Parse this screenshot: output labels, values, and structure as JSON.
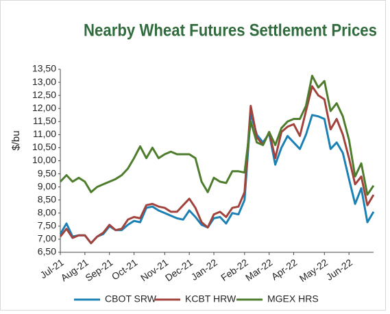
{
  "chart_data": {
    "type": "line",
    "title": "Nearby Wheat Futures Settlement Prices",
    "y_label": "$/bu",
    "categories": [
      "Jul-21",
      null,
      null,
      null,
      "Aug-21",
      null,
      null,
      null,
      "Sep-21",
      null,
      null,
      null,
      "Oct-21",
      null,
      null,
      null,
      null,
      "Nov-21",
      null,
      null,
      null,
      "Dec-21",
      null,
      null,
      null,
      "Jan-22",
      null,
      null,
      null,
      null,
      "Feb-22",
      null,
      null,
      null,
      "Mar-22",
      null,
      null,
      null,
      "Apr-22",
      null,
      null,
      null,
      null,
      "May-22",
      null,
      null,
      null,
      "Jun-22",
      null,
      null,
      null,
      null
    ],
    "series": [
      {
        "name": "CBOT SRW",
        "color": "#1b80b3",
        "values": [
          7.2,
          7.6,
          7.1,
          7.15,
          7.15,
          6.85,
          7.1,
          7.2,
          7.5,
          7.35,
          7.35,
          7.55,
          7.7,
          7.65,
          8.2,
          8.25,
          8.1,
          8.0,
          7.9,
          7.8,
          7.75,
          8.1,
          7.85,
          7.55,
          7.45,
          7.8,
          7.85,
          7.6,
          8.0,
          7.95,
          8.5,
          11.8,
          11.0,
          10.7,
          11.05,
          9.85,
          10.5,
          10.95,
          10.7,
          10.45,
          11.0,
          11.75,
          11.7,
          11.6,
          10.45,
          10.7,
          10.3,
          9.3,
          8.35,
          8.95,
          7.65,
          8.05
        ]
      },
      {
        "name": "KCBT HRW",
        "color": "#a2423c",
        "values": [
          7.1,
          7.4,
          7.05,
          7.15,
          7.15,
          6.85,
          7.1,
          7.25,
          7.55,
          7.35,
          7.4,
          7.75,
          7.85,
          7.8,
          8.3,
          8.35,
          8.25,
          8.2,
          8.05,
          8.05,
          8.3,
          8.55,
          8.2,
          7.65,
          7.45,
          7.95,
          8.05,
          7.85,
          8.2,
          8.25,
          8.8,
          12.1,
          10.9,
          10.6,
          11.1,
          10.1,
          11.1,
          11.3,
          11.4,
          10.95,
          11.9,
          12.85,
          12.5,
          12.35,
          11.2,
          11.6,
          11.0,
          10.1,
          9.1,
          9.4,
          8.3,
          8.7
        ]
      },
      {
        "name": "MGEX HRS",
        "color": "#4d7d2c",
        "values": [
          9.2,
          9.45,
          9.2,
          9.35,
          9.2,
          8.8,
          9.0,
          9.1,
          9.2,
          9.3,
          9.45,
          9.7,
          10.1,
          10.55,
          10.1,
          10.5,
          10.1,
          10.25,
          10.35,
          10.25,
          10.25,
          10.25,
          10.1,
          9.2,
          8.8,
          9.35,
          9.2,
          9.15,
          9.6,
          9.6,
          9.55,
          11.5,
          10.7,
          10.6,
          11.1,
          10.6,
          11.25,
          11.5,
          11.6,
          11.6,
          12.1,
          13.25,
          12.8,
          13.05,
          11.9,
          12.2,
          11.7,
          10.8,
          9.4,
          9.9,
          8.7,
          9.05
        ]
      }
    ],
    "ylim": [
      6.5,
      13.5
    ],
    "yticks": [
      {
        "value": 6.5,
        "label": "6,50"
      },
      {
        "value": 7.0,
        "label": "7,00"
      },
      {
        "value": 7.5,
        "label": "7,50"
      },
      {
        "value": 8.0,
        "label": "8,00"
      },
      {
        "value": 8.5,
        "label": "8,50"
      },
      {
        "value": 9.0,
        "label": "9,00"
      },
      {
        "value": 9.5,
        "label": "9,50"
      },
      {
        "value": 10.0,
        "label": "10,00"
      },
      {
        "value": 10.5,
        "label": "10,50"
      },
      {
        "value": 11.0,
        "label": "11,00"
      },
      {
        "value": 11.5,
        "label": "11,50"
      },
      {
        "value": 12.0,
        "label": "12,00"
      },
      {
        "value": 12.5,
        "label": "12,50"
      },
      {
        "value": 13.0,
        "label": "13,00"
      },
      {
        "value": 13.5,
        "label": "13,50"
      }
    ],
    "grid": false,
    "legend": "bottom"
  }
}
